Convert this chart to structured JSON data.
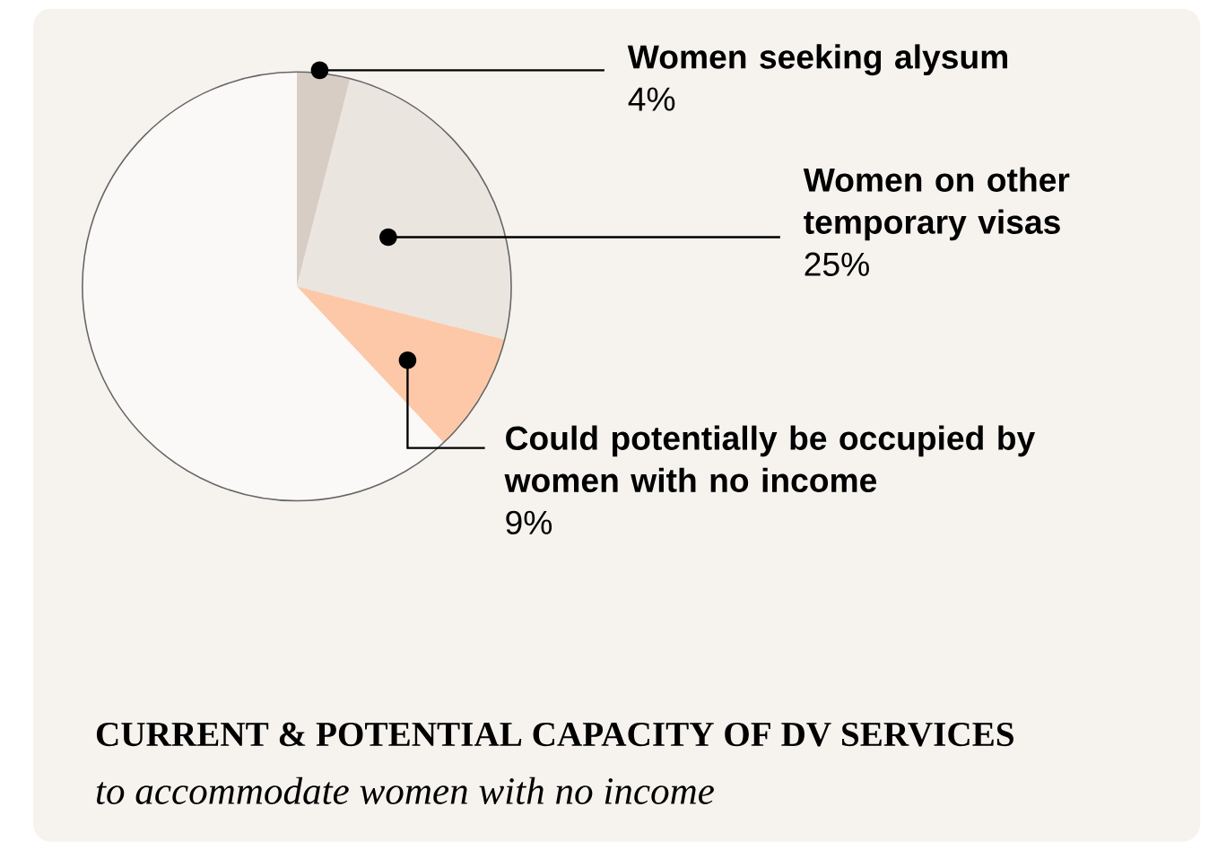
{
  "chart_data": {
    "type": "pie",
    "title": "CURRENT & POTENTIAL CAPACITY OF DV SERVICES",
    "subtitle": "to accommodate women with no income",
    "categories": [
      "Women seeking alysum",
      "Women on other temporary visas",
      "Could potentially be occupied by women with no income",
      null
    ],
    "values": [
      4,
      25,
      9,
      62
    ],
    "colors": [
      "#d8cdc5",
      "#ebe5e0",
      "#fdc8a8",
      "#fbf9f7"
    ],
    "value_labels": [
      "4%",
      "25%",
      "9%",
      null
    ]
  }
}
